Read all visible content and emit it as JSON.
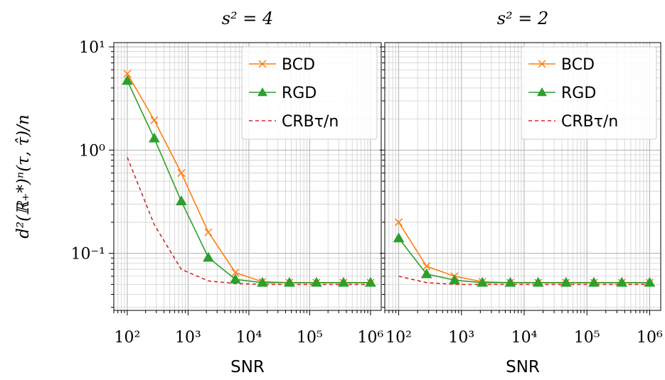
{
  "chart_data": [
    {
      "type": "line",
      "title": "s² = 4",
      "xlabel": "SNR",
      "ylabel": "d²(ℝ₊*)ⁿ(τ, τ̂)/n",
      "xscale": "log",
      "yscale": "log",
      "xlim": [
        60,
        1500000
      ],
      "ylim": [
        0.028,
        11
      ],
      "x_ticks": [
        "10²",
        "10³",
        "10⁴",
        "10⁵",
        "10⁶"
      ],
      "y_ticks": [
        "10¹",
        "10⁰",
        "10⁻¹"
      ],
      "grid": true,
      "legend": "top-right",
      "x": [
        100,
        278,
        774,
        2154,
        5995,
        16681,
        46416,
        129155,
        359381,
        1000000
      ],
      "series": [
        {
          "name": "BCD",
          "color": "#ff7f0e",
          "marker": "x",
          "style": "solid",
          "values": [
            5.5,
            1.95,
            0.6,
            0.16,
            0.065,
            0.053,
            0.052,
            0.052,
            0.052,
            0.052
          ]
        },
        {
          "name": "RGD",
          "color": "#2ca02c",
          "marker": "triangle",
          "style": "solid",
          "values": [
            4.7,
            1.3,
            0.32,
            0.091,
            0.056,
            0.052,
            0.052,
            0.052,
            0.052,
            0.052
          ]
        },
        {
          "name": "CRBτ/n",
          "color": "#d62728",
          "marker": "none",
          "style": "dashed",
          "values": [
            0.85,
            0.19,
            0.07,
            0.054,
            0.051,
            0.05,
            0.05,
            0.05,
            0.05,
            0.05
          ]
        }
      ]
    },
    {
      "type": "line",
      "title": "s² = 2",
      "xlabel": "SNR",
      "xscale": "log",
      "yscale": "log",
      "xlim": [
        60,
        1500000
      ],
      "ylim": [
        0.028,
        11
      ],
      "x_ticks": [
        "10²",
        "10³",
        "10⁴",
        "10⁵",
        "10⁶"
      ],
      "grid": true,
      "legend": "top-right",
      "x": [
        100,
        278,
        774,
        2154,
        5995,
        16681,
        46416,
        129155,
        359381,
        1000000
      ],
      "series": [
        {
          "name": "BCD",
          "color": "#ff7f0e",
          "marker": "x",
          "style": "solid",
          "values": [
            0.2,
            0.075,
            0.06,
            0.053,
            0.052,
            0.052,
            0.052,
            0.052,
            0.052,
            0.052
          ]
        },
        {
          "name": "RGD",
          "color": "#2ca02c",
          "marker": "triangle",
          "style": "solid",
          "values": [
            0.14,
            0.063,
            0.055,
            0.052,
            0.052,
            0.052,
            0.052,
            0.052,
            0.052,
            0.052
          ]
        },
        {
          "name": "CRBτ/n",
          "color": "#d62728",
          "marker": "none",
          "style": "dashed",
          "values": [
            0.06,
            0.052,
            0.05,
            0.05,
            0.05,
            0.05,
            0.05,
            0.05,
            0.05,
            0.05
          ]
        }
      ]
    }
  ]
}
